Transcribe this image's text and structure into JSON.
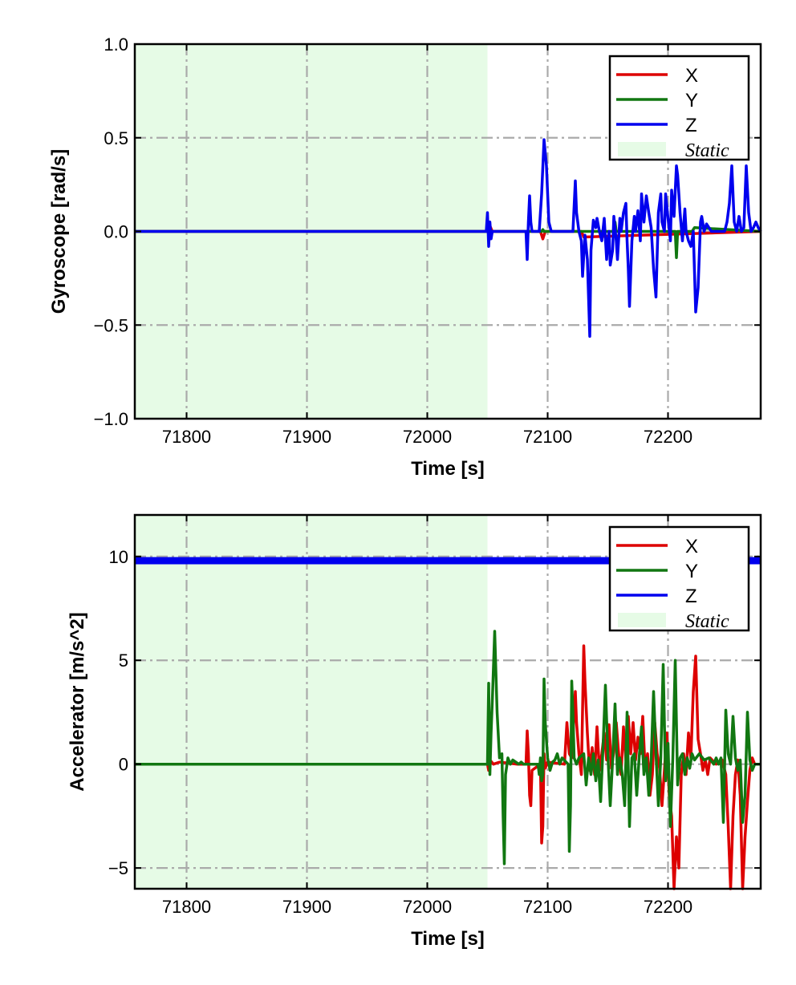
{
  "chart_data": [
    {
      "type": "line",
      "xlabel": "Time [s]",
      "ylabel": "Gyroscope [rad/s]",
      "xlim": [
        71757,
        72277
      ],
      "ylim": [
        -1.0,
        1.0
      ],
      "xticks": [
        71800,
        71900,
        72000,
        72100,
        72200
      ],
      "xtick_labels": [
        "71800",
        "71900",
        "72000",
        "72100",
        "72200"
      ],
      "yticks": [
        -1.0,
        -0.5,
        0.0,
        0.5,
        1.0
      ],
      "ytick_labels": [
        "−1.0",
        "−0.5",
        "0.0",
        "0.5",
        "1.0"
      ],
      "grid": true,
      "legend": "top-right",
      "static_region": {
        "label": "Static",
        "x": [
          71757,
          72050
        ]
      },
      "series": [
        {
          "name": "X",
          "color": "#dd0000",
          "x": [
            71757,
            72050,
            72052,
            72054,
            72094,
            72096,
            72098,
            72128,
            72130,
            72277
          ],
          "y": [
            0,
            0,
            0.03,
            0,
            0,
            -0.04,
            0,
            0,
            -0.03,
            0
          ]
        },
        {
          "name": "Y",
          "color": "#117711",
          "x": [
            71757,
            72095,
            72096,
            72097,
            72155,
            72156,
            72157,
            72206,
            72207,
            72208,
            72220,
            72222,
            72277
          ],
          "y": [
            0,
            0,
            0.01,
            0,
            0,
            0.05,
            0,
            0,
            -0.14,
            0,
            0,
            0.02,
            0
          ]
        },
        {
          "name": "Z",
          "color": "#0000ee",
          "x": [
            71757,
            72049,
            72050,
            72051,
            72052,
            72053,
            72054,
            72082,
            72083,
            72084,
            72085,
            72086,
            72087,
            72093,
            72095,
            72097,
            72099,
            72101,
            72103,
            72121,
            72123,
            72124,
            72126,
            72128,
            72129,
            72131,
            72133,
            72135,
            72136,
            72138,
            72140,
            72141,
            72143,
            72145,
            72147,
            72149,
            72150,
            72151,
            72152,
            72154,
            72155,
            72157,
            72158,
            72160,
            72161,
            72163,
            72165,
            72166,
            72167,
            72168,
            72170,
            72172,
            72173,
            72175,
            72177,
            72178,
            72180,
            72182,
            72184,
            72186,
            72188,
            72190,
            72192,
            72194,
            72195,
            72197,
            72198,
            72200,
            72202,
            72203,
            72205,
            72207,
            72208,
            72210,
            72212,
            72214,
            72215,
            72217,
            72219,
            72221,
            72223,
            72225,
            72227,
            72228,
            72230,
            72232,
            72234,
            72236,
            72247,
            72249,
            72251,
            72253,
            72255,
            72257,
            72259,
            72261,
            72263,
            72265,
            72267,
            72269,
            72271,
            72273,
            72275,
            72277
          ],
          "y": [
            0,
            0,
            0.1,
            -0.08,
            0.05,
            -0.04,
            0,
            0,
            -0.15,
            0.05,
            0.19,
            0.05,
            0,
            0,
            0.2,
            0.49,
            0.35,
            0.05,
            0,
            0,
            0.27,
            0.1,
            0,
            -0.05,
            -0.24,
            -0.02,
            -0.15,
            -0.56,
            -0.1,
            0.06,
            0.02,
            0.07,
            0,
            -0.05,
            0.07,
            -0.15,
            -0.05,
            0,
            -0.18,
            -0.1,
            0.08,
            -0.05,
            -0.15,
            0.07,
            0,
            0.1,
            0.15,
            -0.05,
            -0.2,
            -0.4,
            -0.05,
            0.08,
            0,
            0.11,
            -0.05,
            0.2,
            0.05,
            0.19,
            0.1,
            0.02,
            -0.2,
            -0.35,
            0.1,
            0.2,
            0.05,
            0,
            0.2,
            0.07,
            -0.05,
            0.22,
            0.08,
            0.35,
            0.3,
            0.1,
            -0.05,
            0.12,
            0,
            -0.05,
            -0.08,
            0,
            -0.43,
            -0.3,
            0.05,
            0.08,
            0,
            0.04,
            0.02,
            0,
            0,
            0.05,
            0.15,
            0.35,
            0.05,
            0,
            0.08,
            0,
            0.02,
            0.35,
            0.1,
            0,
            0.02,
            0.05,
            0.02,
            0
          ]
        }
      ]
    },
    {
      "type": "line",
      "xlabel": "Time [s]",
      "ylabel": "Accelerator [m/s^2]",
      "xlim": [
        71757,
        72277
      ],
      "ylim": [
        -6,
        12
      ],
      "xticks": [
        71800,
        71900,
        72000,
        72100,
        72200
      ],
      "xtick_labels": [
        "71800",
        "71900",
        "72000",
        "72100",
        "72200"
      ],
      "yticks": [
        -5,
        0,
        5,
        10
      ],
      "ytick_labels": [
        "−5",
        "0",
        "5",
        "10"
      ],
      "grid": true,
      "legend": "top-right",
      "static_region": {
        "label": "Static",
        "x": [
          71757,
          72050
        ]
      },
      "series": [
        {
          "name": "X",
          "color": "#dd0000",
          "x": [
            71757,
            72050,
            72051,
            72052,
            72055,
            72060,
            72075,
            72082,
            72083,
            72084,
            72085,
            72086,
            72087,
            72094,
            72095,
            72096,
            72097,
            72098,
            72100,
            72114,
            72116,
            72118,
            72120,
            72123,
            72124,
            72126,
            72128,
            72130,
            72131,
            72133,
            72134,
            72135,
            72137,
            72139,
            72141,
            72143,
            72145,
            72147,
            72149,
            72151,
            72153,
            72155,
            72157,
            72159,
            72161,
            72163,
            72165,
            72167,
            72169,
            72171,
            72173,
            72175,
            72177,
            72179,
            72181,
            72183,
            72185,
            72187,
            72189,
            72191,
            72193,
            72195,
            72197,
            72199,
            72201,
            72203,
            72205,
            72207,
            72209,
            72211,
            72213,
            72215,
            72217,
            72219,
            72221,
            72223,
            72225,
            72227,
            72229,
            72231,
            72233,
            72235,
            72240,
            72245,
            72248,
            72250,
            72252,
            72254,
            72256,
            72258,
            72260,
            72262,
            72264,
            72266,
            72268,
            72270,
            72272,
            72277
          ],
          "y": [
            0,
            0,
            -0.3,
            0.2,
            0,
            0.1,
            0,
            0,
            1.6,
            0.5,
            -1.5,
            -2.0,
            -0.3,
            0,
            -3.8,
            -3.0,
            0.5,
            -0.2,
            0.1,
            0,
            2.0,
            0.5,
            0.3,
            3.5,
            2.0,
            0.5,
            -0.5,
            5.7,
            4.0,
            1.5,
            0.5,
            -0.3,
            0.8,
            -0.5,
            1.8,
            -0.3,
            0.5,
            1.5,
            0.2,
            1.9,
            -0.2,
            0.6,
            2.0,
            0.5,
            -0.5,
            1.8,
            0.2,
            2.3,
            0.5,
            2.0,
            0.2,
            1.3,
            0.5,
            2.3,
            -0.3,
            0.5,
            -1.5,
            -0.5,
            2.0,
            0.5,
            -0.2,
            -2.0,
            -0.3,
            1.5,
            -1.5,
            -2.5,
            -6.0,
            -3.5,
            -5.0,
            -0.5,
            0.5,
            -0.5,
            1.5,
            0.3,
            3.5,
            5.2,
            1.2,
            0.5,
            -0.3,
            0.2,
            -0.5,
            0.3,
            0,
            0.2,
            -0.5,
            -3.0,
            -6.0,
            -2.5,
            -0.5,
            0.2,
            -1.5,
            -6.0,
            -3.5,
            -1.8,
            -0.3,
            0.3,
            0,
            0
          ]
        },
        {
          "name": "Y",
          "color": "#117711",
          "x": [
            71757,
            72050,
            72051,
            72052,
            72053,
            72054,
            72056,
            72058,
            72060,
            72062,
            72063,
            72064,
            72065,
            72067,
            72069,
            72071,
            72076,
            72078,
            72080,
            72092,
            72093,
            72094,
            72095,
            72096,
            72097,
            72098,
            72100,
            72102,
            72104,
            72106,
            72108,
            72110,
            72112,
            72117,
            72118,
            72119,
            72120,
            72121,
            72122,
            72124,
            72126,
            72130,
            72132,
            72134,
            72136,
            72138,
            72140,
            72142,
            72144,
            72146,
            72148,
            72150,
            72152,
            72154,
            72156,
            72158,
            72160,
            72162,
            72164,
            72166,
            72168,
            72170,
            72172,
            72174,
            72176,
            72178,
            72180,
            72182,
            72184,
            72186,
            72188,
            72190,
            72192,
            72194,
            72196,
            72198,
            72200,
            72202,
            72204,
            72206,
            72208,
            72210,
            72212,
            72214,
            72216,
            72218,
            72220,
            72222,
            72226,
            72230,
            72234,
            72238,
            72240,
            72242,
            72244,
            72246,
            72248,
            72250,
            72252,
            72254,
            72256,
            72258,
            72260,
            72262,
            72264,
            72266,
            72268,
            72270,
            72272,
            72277
          ],
          "y": [
            0,
            0,
            3.9,
            -0.5,
            1.5,
            3.0,
            6.4,
            2.5,
            0.3,
            0.5,
            -2.5,
            -4.8,
            -0.5,
            0.3,
            0,
            0.2,
            0,
            0.1,
            0,
            0,
            -0.5,
            0.3,
            -0.8,
            -0.5,
            4.1,
            2.0,
            0.3,
            -0.3,
            0.1,
            0.2,
            0.5,
            0,
            0.3,
            0,
            -4.2,
            -2.0,
            4.0,
            2.5,
            0.3,
            0,
            0.3,
            0.5,
            -1.0,
            0.3,
            -0.5,
            0.5,
            -0.8,
            0.2,
            -1.8,
            0.8,
            3.8,
            0.5,
            -2.0,
            0.2,
            2.9,
            -0.5,
            0.3,
            -0.5,
            -2.0,
            2.5,
            -3.0,
            0.3,
            0.5,
            -1.5,
            0.3,
            1.8,
            -0.5,
            0.3,
            -1.5,
            0.2,
            3.5,
            0.5,
            -2.0,
            0.3,
            4.8,
            -0.8,
            1.0,
            -3.0,
            0.3,
            5.0,
            -1.0,
            0.3,
            0.5,
            -0.5,
            0.3,
            -0.2,
            0.5,
            0.2,
            0.5,
            0.2,
            0.3,
            0,
            0.3,
            0,
            0.3,
            -2.8,
            2.6,
            0.5,
            0,
            2.3,
            0.3,
            -0.3,
            0.2,
            -2.8,
            -1.5,
            2.5,
            0.2,
            -0.3,
            0,
            0
          ]
        },
        {
          "name": "Z",
          "color": "#0000ee",
          "x": [
            71757,
            72277
          ],
          "y": [
            9.8,
            9.8
          ]
        }
      ]
    }
  ],
  "legend_glyph": "—"
}
